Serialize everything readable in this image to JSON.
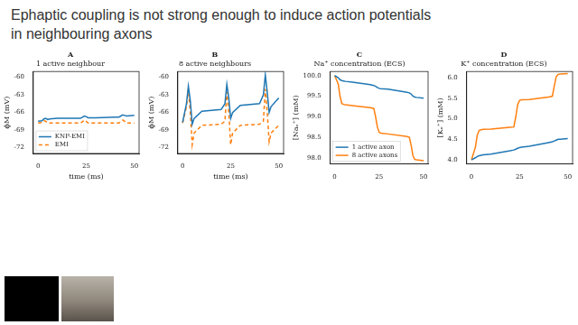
{
  "slide_title": "Ephaptic coupling is not strong enough to induce action potentials in neighbouring axons",
  "chart_data": [
    {
      "type": "line",
      "annotation": "A",
      "title": "1 active neighbour",
      "x_label": "time (ms)",
      "y_label": "ϕM (mV)",
      "x": [
        0,
        2,
        3,
        4,
        5,
        6,
        10,
        20,
        22,
        23,
        24,
        25,
        26,
        30,
        40,
        42,
        43,
        44,
        45,
        46,
        50
      ],
      "series": [
        {
          "name": "KNP-EMI",
          "color": "#1f77b4",
          "line_style": "solid",
          "values": [
            -67.5,
            -67.4,
            -67.1,
            -67.0,
            -67.2,
            -67.1,
            -67.0,
            -67.0,
            -67.0,
            -66.8,
            -66.6,
            -66.7,
            -66.9,
            -66.9,
            -66.8,
            -66.8,
            -66.6,
            -66.4,
            -66.5,
            -66.6,
            -66.5
          ]
        },
        {
          "name": "EMI",
          "color": "#ff7f0e",
          "line_style": "dashed",
          "values": [
            -67.8,
            -67.7,
            -67.4,
            -67.5,
            -67.8,
            -67.8,
            -67.8,
            -67.8,
            -67.8,
            -67.6,
            -67.3,
            -67.5,
            -67.8,
            -67.8,
            -67.8,
            -67.8,
            -67.6,
            -67.3,
            -67.5,
            -67.8,
            -67.8
          ]
        }
      ],
      "xlim": [
        -2.5,
        52.5
      ],
      "xticks": [
        0,
        25,
        50
      ],
      "ylim": [
        -73,
        -59
      ],
      "yticks": [
        -72,
        -69,
        -66,
        -63,
        -60
      ],
      "grid": false,
      "legend": "lower left"
    },
    {
      "type": "line",
      "annotation": "B",
      "title": "8 active neighbours",
      "x_label": "time (ms)",
      "y_label": "ϕM (mV)",
      "x": [
        0,
        2,
        3,
        4,
        5,
        6,
        10,
        20,
        22,
        23,
        24,
        25,
        26,
        30,
        40,
        42,
        43,
        44,
        45,
        46,
        50
      ],
      "series": [
        {
          "name": "KNP-EMI",
          "color": "#1f77b4",
          "line_style": "solid",
          "values": [
            -67.7,
            -64.5,
            -61.5,
            -64.0,
            -68.0,
            -67.0,
            -65.8,
            -65.5,
            -64.5,
            -61.2,
            -63.5,
            -67.0,
            -66.0,
            -64.8,
            -64.5,
            -63.0,
            -59.6,
            -62.5,
            -66.0,
            -65.0,
            -63.5
          ]
        },
        {
          "name": "EMI",
          "color": "#ff7f0e",
          "line_style": "dashed",
          "values": [
            -67.8,
            -65.0,
            -62.0,
            -66.0,
            -71.5,
            -69.5,
            -68.2,
            -68.0,
            -67.5,
            -62.5,
            -66.0,
            -71.5,
            -69.5,
            -68.2,
            -68.0,
            -67.5,
            -62.0,
            -66.0,
            -71.0,
            -69.5,
            -68.2
          ]
        }
      ],
      "xlim": [
        -2.5,
        52.5
      ],
      "xticks": [
        0,
        25,
        50
      ],
      "ylim": [
        -73,
        -59
      ],
      "yticks": [
        -72,
        -69,
        -66,
        -63,
        -60
      ],
      "grid": false
    },
    {
      "type": "line",
      "annotation": "C",
      "title": "Na⁺ concentration (ECS)",
      "y_label": "[Naₑ⁺] (mM)",
      "x": [
        0,
        2,
        3,
        4,
        5,
        6,
        10,
        20,
        22,
        23,
        24,
        25,
        26,
        30,
        40,
        42,
        43,
        44,
        45,
        46,
        50
      ],
      "series": [
        {
          "name": "1 active axon",
          "color": "#1f77b4",
          "line_style": "solid",
          "values": [
            100,
            99.95,
            99.9,
            99.88,
            99.87,
            99.86,
            99.84,
            99.78,
            99.76,
            99.74,
            99.71,
            99.69,
            99.68,
            99.67,
            99.6,
            99.58,
            99.55,
            99.5,
            99.48,
            99.47,
            99.45
          ]
        },
        {
          "name": "8 active axons",
          "color": "#ff7f0e",
          "line_style": "solid",
          "values": [
            100,
            99.8,
            99.5,
            99.32,
            99.3,
            99.29,
            99.27,
            99.22,
            99.2,
            99.0,
            98.75,
            98.62,
            98.6,
            98.58,
            98.52,
            98.5,
            98.3,
            98.05,
            97.96,
            97.95,
            97.93
          ]
        }
      ],
      "xlim": [
        -2.5,
        52.5
      ],
      "xticks": [
        0,
        25,
        50
      ],
      "ylim": [
        97.85,
        100.1
      ],
      "yticks": [
        {
          "value": 98,
          "label": "98.0"
        },
        98.5,
        {
          "value": 99,
          "label": "99.0"
        },
        99.5,
        {
          "value": 100,
          "label": "100.0"
        }
      ],
      "grid": false,
      "legend": "lower left"
    },
    {
      "type": "line",
      "annotation": "D",
      "title": "K⁺ concentration (ECS)",
      "y_label": "[Kₑ⁺] (mM)",
      "x": [
        0,
        2,
        3,
        4,
        5,
        6,
        10,
        20,
        22,
        23,
        24,
        25,
        26,
        30,
        40,
        42,
        43,
        44,
        45,
        46,
        50
      ],
      "series": [
        {
          "name": "1 active axon",
          "color": "#1f77b4",
          "line_style": "solid",
          "values": [
            4.0,
            4.05,
            4.08,
            4.1,
            4.11,
            4.12,
            4.14,
            4.22,
            4.24,
            4.26,
            4.28,
            4.3,
            4.31,
            4.33,
            4.42,
            4.44,
            4.46,
            4.48,
            4.5,
            4.5,
            4.52
          ]
        },
        {
          "name": "8 active axons",
          "color": "#ff7f0e",
          "line_style": "solid",
          "values": [
            4.0,
            4.3,
            4.6,
            4.72,
            4.73,
            4.74,
            4.75,
            4.79,
            4.8,
            5.05,
            5.35,
            5.45,
            5.46,
            5.47,
            5.53,
            5.55,
            5.8,
            6.02,
            6.08,
            6.09,
            6.1
          ]
        }
      ],
      "xlim": [
        -2.5,
        52.5
      ],
      "xticks": [
        0,
        25,
        50
      ],
      "ylim": [
        3.9,
        6.15
      ],
      "yticks": [
        {
          "value": 4,
          "label": "4.0"
        },
        4.5,
        {
          "value": 5,
          "label": "5.0"
        },
        5.5,
        {
          "value": 6,
          "label": "6.0"
        }
      ],
      "grid": false
    }
  ]
}
